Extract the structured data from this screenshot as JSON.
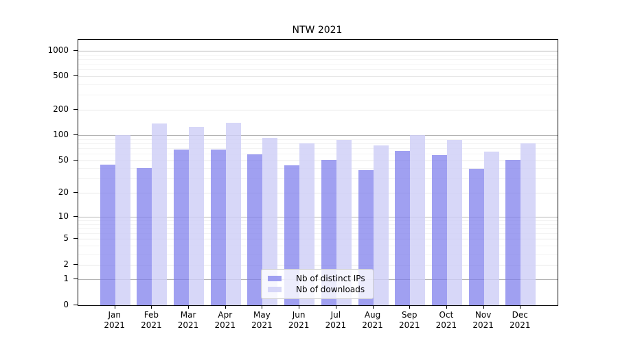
{
  "title": "NTW 2021",
  "chart_data": {
    "type": "bar",
    "title": "NTW 2021",
    "x_month_labels": [
      "Jan",
      "Feb",
      "Mar",
      "Apr",
      "May",
      "Jun",
      "Jul",
      "Aug",
      "Sep",
      "Oct",
      "Nov",
      "Dec"
    ],
    "x_year_label": "2021",
    "series": [
      {
        "name": "Nb of distinct IPs",
        "color": "rgba(124,124,236,0.72)",
        "values": [
          45,
          41,
          68,
          68,
          60,
          44,
          51,
          38,
          65,
          58,
          40,
          51
        ]
      },
      {
        "name": "Nb of downloads",
        "color": "rgba(206,206,247,0.82)",
        "values": [
          100,
          140,
          127,
          142,
          93,
          81,
          88,
          76,
          100,
          89,
          64,
          80
        ]
      }
    ],
    "yscale": "log1p",
    "ylim": [
      0,
      1358
    ],
    "yticks_labeled": [
      1000,
      500,
      200,
      100,
      50,
      20,
      10,
      5,
      2,
      1,
      0
    ],
    "yticks_major": [
      1,
      10,
      100,
      1000
    ],
    "yticks_sub": [
      2,
      5,
      20,
      50,
      200,
      500
    ],
    "yticks_minor": [
      3,
      4,
      6,
      7,
      8,
      9,
      30,
      40,
      60,
      70,
      80,
      90,
      300,
      400,
      600,
      700,
      800,
      900
    ],
    "grid_color_major": "#b3b3b3",
    "grid_color_sub": "#e7e7e7",
    "grid_color_minor": "#f3f3f3",
    "legend_position": "lower-center"
  }
}
